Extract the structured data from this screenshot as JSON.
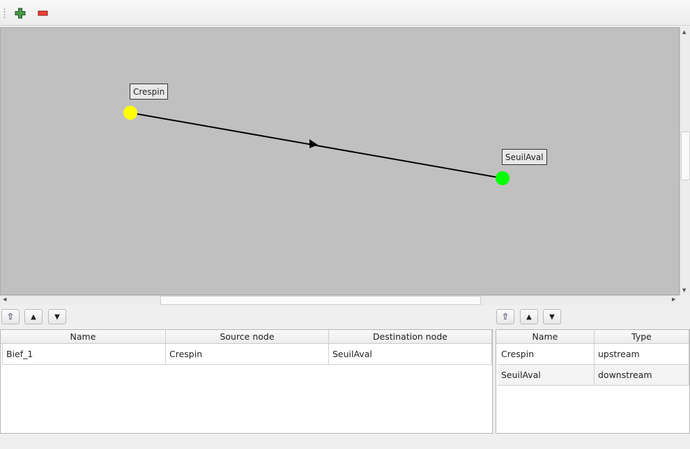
{
  "toolbar": {
    "add_icon": "plus-icon",
    "remove_icon": "minus-icon"
  },
  "graph": {
    "nodes": [
      {
        "name": "Crespin",
        "color": "#ffff00"
      },
      {
        "name": "SeuilAval",
        "color": "#00ff00"
      }
    ],
    "edge": {
      "from": "Crespin",
      "to": "SeuilAval",
      "directed": true
    }
  },
  "reaches": {
    "columns": [
      "Name",
      "Source node",
      "Destination node"
    ],
    "rows": [
      [
        "Bief_1",
        "Crespin",
        "SeuilAval"
      ]
    ]
  },
  "nodes_table": {
    "columns": [
      "Name",
      "Type"
    ],
    "rows": [
      [
        "Crespin",
        "upstream"
      ],
      [
        "SeuilAval",
        "downstream"
      ]
    ]
  }
}
